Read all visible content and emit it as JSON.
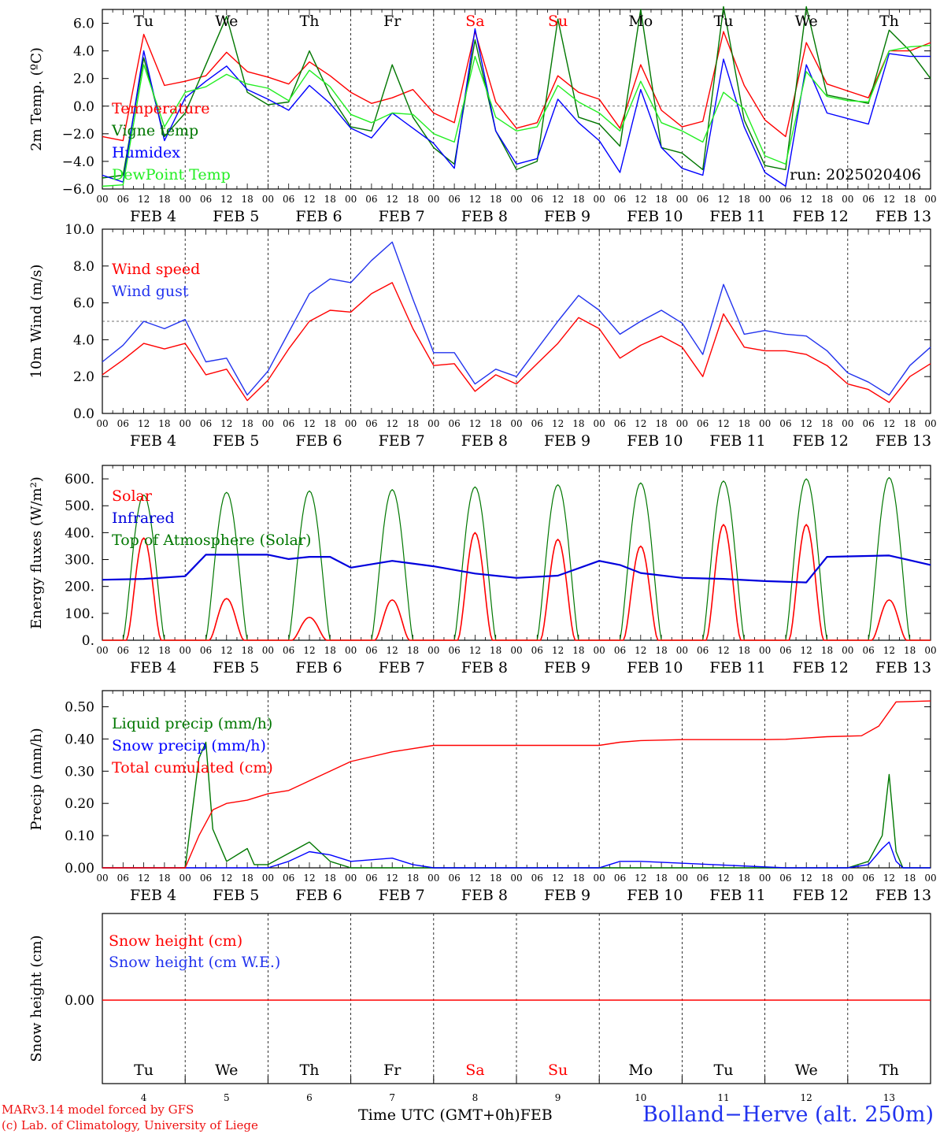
{
  "chart_data": [
    {
      "type": "line",
      "ylabel": "2m Temp. (ºC)",
      "ylim": [
        -6,
        7
      ],
      "yticks": [
        "6.0",
        "4.0",
        "2.0",
        "0.0",
        "−2.0",
        "−4.0",
        "−6.0"
      ],
      "ytick_values": [
        6,
        4,
        2,
        0,
        -2,
        -4,
        -6
      ],
      "reference_line": 0,
      "annotation": "run: 2025020406",
      "day_names_top": [
        "Tu",
        "We",
        "Th",
        "Fr",
        "Sa",
        "Su",
        "Mo",
        "Tu",
        "We",
        "Th"
      ],
      "x_hours": [
        0,
        6,
        12,
        18,
        24,
        30,
        36,
        42,
        48,
        54,
        60,
        66,
        72,
        78,
        84,
        90,
        96,
        102,
        108,
        114,
        120,
        126,
        132,
        138,
        144,
        150,
        156,
        162,
        168,
        174,
        180,
        186,
        192,
        198,
        204,
        210,
        216,
        222,
        228,
        234,
        240
      ],
      "series": [
        {
          "name": "Temperature",
          "color": "#ff0000",
          "values": [
            -2.2,
            -2.5,
            5.2,
            1.5,
            1.8,
            2.2,
            3.9,
            2.5,
            2.1,
            1.6,
            3.2,
            2.2,
            1.0,
            0.2,
            0.6,
            1.2,
            -0.5,
            -1.2,
            5.4,
            0.3,
            -1.6,
            -1.2,
            2.2,
            1.0,
            0.5,
            -1.6,
            3.0,
            -0.3,
            -1.5,
            -1.1,
            5.4,
            1.5,
            -1.0,
            -2.2,
            4.6,
            1.6,
            1.1,
            0.6,
            4.0,
            4.0,
            4.6
          ]
        },
        {
          "name": "Vigne temp",
          "color": "#007700",
          "values": [
            -5.2,
            -5.0,
            3.5,
            -2.2,
            -0.5,
            3.0,
            6.5,
            1.0,
            0.1,
            0.3,
            4.0,
            0.8,
            -1.5,
            -1.8,
            3.0,
            -0.8,
            -3.0,
            -4.2,
            4.8,
            -1.8,
            -4.6,
            -4.0,
            6.3,
            -0.8,
            -1.3,
            -2.9,
            7.0,
            -3.0,
            -3.4,
            -4.6,
            7.2,
            -1.0,
            -4.3,
            -4.6,
            7.2,
            0.8,
            0.5,
            0.2,
            5.5,
            4.0,
            2.0
          ]
        },
        {
          "name": "Humidex",
          "color": "#0000ff",
          "values": [
            -5.0,
            -5.5,
            4.0,
            -2.5,
            0.6,
            1.8,
            2.9,
            1.2,
            0.5,
            -0.3,
            1.5,
            0.2,
            -1.6,
            -2.3,
            -0.5,
            -1.6,
            -2.7,
            -4.5,
            5.6,
            -1.8,
            -4.2,
            -3.8,
            0.5,
            -1.2,
            -2.5,
            -4.8,
            1.2,
            -3.0,
            -4.5,
            -5.0,
            3.4,
            -1.5,
            -4.8,
            -5.8,
            3.0,
            -0.5,
            -0.9,
            -1.3,
            3.8,
            3.6,
            3.6
          ]
        },
        {
          "name": "DewPoint Temp",
          "color": "#22ee22",
          "values": [
            -5.8,
            -5.7,
            3.0,
            -1.5,
            1.0,
            1.4,
            2.3,
            1.6,
            1.3,
            0.4,
            2.6,
            1.4,
            -0.6,
            -1.2,
            -0.5,
            -0.6,
            -2.0,
            -2.6,
            3.6,
            -0.8,
            -1.8,
            -1.5,
            1.5,
            0.3,
            -0.5,
            -1.8,
            1.8,
            -1.2,
            -1.8,
            -2.6,
            1.0,
            -0.2,
            -3.6,
            -4.2,
            2.5,
            0.7,
            0.4,
            0.3,
            4.0,
            4.3,
            4.4
          ]
        }
      ]
    },
    {
      "type": "line",
      "ylabel": "10m Wind (m/s)",
      "ylim": [
        0,
        10
      ],
      "yticks": [
        "10.0",
        "8.0",
        "6.0",
        "4.0",
        "2.0",
        "0.0"
      ],
      "ytick_values": [
        10,
        8,
        6,
        4,
        2,
        0
      ],
      "reference_line": 5,
      "x_hours": [
        0,
        6,
        12,
        18,
        24,
        30,
        36,
        42,
        48,
        54,
        60,
        66,
        72,
        78,
        84,
        90,
        96,
        102,
        108,
        114,
        120,
        126,
        132,
        138,
        144,
        150,
        156,
        162,
        168,
        174,
        180,
        186,
        192,
        198,
        204,
        210,
        216,
        222,
        228,
        234,
        240
      ],
      "series": [
        {
          "name": "Wind speed",
          "color": "#ff0000",
          "values": [
            2.1,
            2.9,
            3.8,
            3.5,
            3.8,
            2.1,
            2.4,
            0.7,
            1.8,
            3.5,
            5.0,
            5.6,
            5.5,
            6.5,
            7.1,
            4.6,
            2.6,
            2.7,
            1.2,
            2.1,
            1.6,
            2.7,
            3.8,
            5.2,
            4.6,
            3.0,
            3.7,
            4.2,
            3.6,
            2.0,
            5.4,
            3.6,
            3.4,
            3.4,
            3.2,
            2.6,
            1.6,
            1.3,
            0.6,
            2.0,
            2.7
          ]
        },
        {
          "name": "Wind gust",
          "color": "#2233ee",
          "values": [
            2.8,
            3.7,
            5.0,
            4.6,
            5.1,
            2.8,
            3.0,
            1.0,
            2.3,
            4.4,
            6.5,
            7.3,
            7.1,
            8.3,
            9.3,
            6.2,
            3.3,
            3.3,
            1.6,
            2.4,
            2.0,
            3.5,
            5.0,
            6.4,
            5.6,
            4.3,
            5.0,
            5.6,
            4.9,
            3.2,
            7.0,
            4.3,
            4.5,
            4.3,
            4.2,
            3.4,
            2.2,
            1.7,
            1.0,
            2.6,
            3.6
          ]
        }
      ]
    },
    {
      "type": "line",
      "ylabel": "Energy fluxes (W/m²)",
      "ylim": [
        0,
        650
      ],
      "yticks": [
        "600.",
        "500.",
        "400.",
        "300.",
        "200.",
        "100.",
        "0."
      ],
      "ytick_values": [
        600,
        500,
        400,
        300,
        200,
        100,
        0
      ],
      "series": [
        {
          "name": "Solar",
          "color": "#ff0000",
          "daily_peak_values": [
            380,
            155,
            85,
            150,
            400,
            375,
            350,
            430,
            430,
            150
          ]
        },
        {
          "name": "Infrared",
          "color": "#0000dd",
          "x_hours": [
            0,
            12,
            24,
            30,
            48,
            54,
            60,
            66,
            72,
            84,
            96,
            108,
            120,
            132,
            144,
            150,
            156,
            168,
            180,
            192,
            204,
            210,
            228,
            240
          ],
          "values": [
            225,
            228,
            238,
            318,
            318,
            302,
            310,
            310,
            270,
            295,
            275,
            248,
            232,
            240,
            295,
            280,
            250,
            232,
            228,
            220,
            215,
            310,
            315,
            280
          ]
        },
        {
          "name": "Top of Atmosphere (Solar)",
          "color": "#007700",
          "daily_peak_values": [
            540,
            550,
            555,
            560,
            570,
            578,
            585,
            592,
            600,
            605
          ]
        }
      ]
    },
    {
      "type": "line",
      "ylabel": "Precip (mm/h)",
      "ylim": [
        0,
        0.55
      ],
      "yticks": [
        "0.50",
        "0.40",
        "0.30",
        "0.20",
        "0.10",
        "0.00"
      ],
      "ytick_values": [
        0.5,
        0.4,
        0.3,
        0.2,
        0.1,
        0
      ],
      "series": [
        {
          "name": "Liquid precip (mm/h)",
          "color": "#007700",
          "x_hours": [
            0,
            24,
            28,
            30,
            32,
            36,
            42,
            44,
            48,
            60,
            66,
            72,
            96,
            144,
            216,
            222,
            226,
            228,
            230,
            232,
            240
          ],
          "values": [
            0,
            0,
            0.34,
            0.39,
            0.12,
            0.02,
            0.06,
            0.01,
            0.01,
            0.08,
            0.02,
            0,
            0,
            0,
            0,
            0.02,
            0.1,
            0.29,
            0.05,
            0,
            0
          ]
        },
        {
          "name": "Snow precip (mm/h)",
          "color": "#0000ff",
          "x_hours": [
            0,
            48,
            54,
            60,
            66,
            72,
            84,
            90,
            96,
            144,
            150,
            156,
            198,
            216,
            222,
            226,
            228,
            230,
            232,
            240
          ],
          "values": [
            0,
            0,
            0.02,
            0.05,
            0.04,
            0.02,
            0.03,
            0.01,
            0,
            0,
            0.02,
            0.02,
            0,
            0,
            0.01,
            0.06,
            0.08,
            0.02,
            0,
            0
          ]
        },
        {
          "name": "Total cumulated (cm)",
          "color": "#ff0000",
          "x_hours": [
            0,
            24,
            28,
            32,
            36,
            42,
            48,
            54,
            60,
            66,
            72,
            84,
            96,
            120,
            144,
            150,
            156,
            168,
            180,
            192,
            198,
            210,
            220,
            225,
            230,
            240
          ],
          "values": [
            0,
            0,
            0.1,
            0.18,
            0.2,
            0.21,
            0.23,
            0.24,
            0.27,
            0.3,
            0.33,
            0.36,
            0.38,
            0.38,
            0.38,
            0.39,
            0.395,
            0.398,
            0.398,
            0.398,
            0.399,
            0.407,
            0.41,
            0.44,
            0.515,
            0.518
          ]
        }
      ]
    },
    {
      "type": "line",
      "ylabel": "Snow height (cm)",
      "yticks": [
        "0.00"
      ],
      "ytick_values": [
        0
      ],
      "day_names_bottom": [
        "Tu",
        "We",
        "Th",
        "Fr",
        "Sa",
        "Su",
        "Mo",
        "Tu",
        "We",
        "Th"
      ],
      "day_numbers": [
        "4",
        "5",
        "6",
        "7",
        "8",
        "9",
        "10",
        "11",
        "12",
        "13"
      ],
      "xlabel": "Time UTC (GMT+0h)",
      "month": "FEB",
      "series": [
        {
          "name": "Snow height (cm)",
          "color": "#ff0000",
          "values": [
            0,
            0
          ]
        },
        {
          "name": "Snow height (cm W.E.)",
          "color": "#2233ee",
          "values": []
        }
      ]
    }
  ],
  "hour_ticks": [
    "00",
    "06",
    "12",
    "18"
  ],
  "date_labels": [
    "FEB  4",
    "FEB  5",
    "FEB  6",
    "FEB  7",
    "FEB  8",
    "FEB  9",
    "FEB 10",
    "FEB 11",
    "FEB 12",
    "FEB 13"
  ],
  "weekend_color": "#ff0000",
  "footer": {
    "credit_line1": "MARv3.14 model forced by GFS",
    "credit_line2": "(c) Lab. of Climatology, University of Liege",
    "x_title": "Time UTC (GMT+0h)",
    "month": "FEB",
    "station": "Bolland−Herve (alt. 250m)"
  }
}
